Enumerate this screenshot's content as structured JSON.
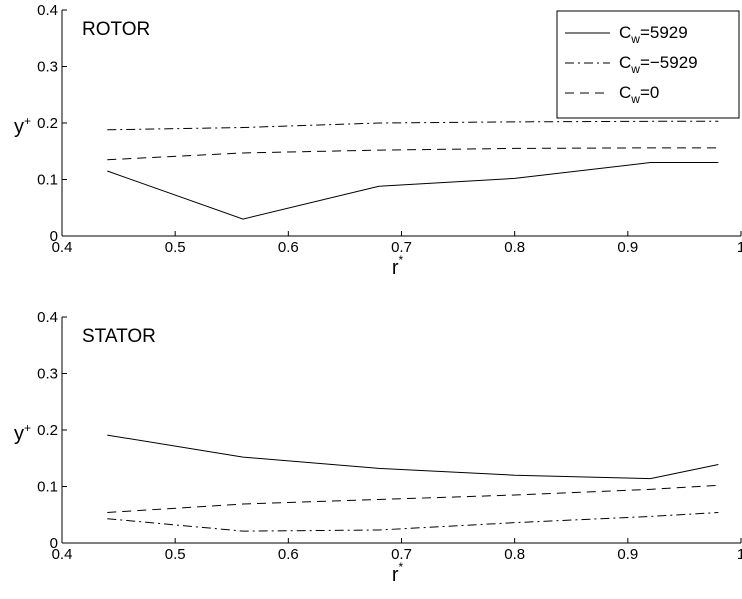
{
  "chart_data": [
    {
      "type": "line",
      "panel_label": "ROTOR",
      "xlabel": "r",
      "xlabel_sup": "*",
      "ylabel": "y",
      "ylabel_sup": "+",
      "xlim": [
        0.4,
        1.0
      ],
      "ylim": [
        0,
        0.4
      ],
      "xticks": [
        "0.4",
        "0.5",
        "0.6",
        "0.7",
        "0.8",
        "0.9",
        "1"
      ],
      "yticks": [
        "0",
        "0.1",
        "0.2",
        "0.3",
        "0.4"
      ],
      "grid": false,
      "legend": {
        "position": "top-right",
        "entries": [
          {
            "symbol": "C",
            "sub": "w",
            "text": "=5929",
            "style": "solid"
          },
          {
            "symbol": "C",
            "sub": "w",
            "text": "=−5929",
            "style": "dashdot"
          },
          {
            "symbol": "C",
            "sub": "w",
            "text": "=0",
            "style": "dashed"
          }
        ]
      },
      "x": [
        0.44,
        0.56,
        0.68,
        0.8,
        0.92,
        0.98
      ],
      "series": [
        {
          "style": "solid",
          "values": [
            0.115,
            0.03,
            0.088,
            0.102,
            0.13,
            0.13
          ]
        },
        {
          "style": "dashdot",
          "values": [
            0.188,
            0.192,
            0.2,
            0.202,
            0.203,
            0.203
          ]
        },
        {
          "style": "dashed",
          "values": [
            0.135,
            0.147,
            0.152,
            0.155,
            0.156,
            0.156
          ]
        }
      ]
    },
    {
      "type": "line",
      "panel_label": "STATOR",
      "xlabel": "r",
      "xlabel_sup": "*",
      "ylabel": "y",
      "ylabel_sup": "+",
      "xlim": [
        0.4,
        1.0
      ],
      "ylim": [
        0,
        0.4
      ],
      "xticks": [
        "0.4",
        "0.5",
        "0.6",
        "0.7",
        "0.8",
        "0.9",
        "1"
      ],
      "yticks": [
        "0",
        "0.1",
        "0.2",
        "0.3",
        "0.4"
      ],
      "grid": false,
      "x": [
        0.44,
        0.56,
        0.68,
        0.8,
        0.92,
        0.98
      ],
      "series": [
        {
          "style": "solid",
          "values": [
            0.191,
            0.152,
            0.132,
            0.12,
            0.114,
            0.139
          ]
        },
        {
          "style": "dashdot",
          "values": [
            0.043,
            0.021,
            0.023,
            0.036,
            0.047,
            0.054
          ]
        },
        {
          "style": "dashed",
          "values": [
            0.054,
            0.069,
            0.077,
            0.085,
            0.095,
            0.102
          ]
        }
      ]
    }
  ]
}
